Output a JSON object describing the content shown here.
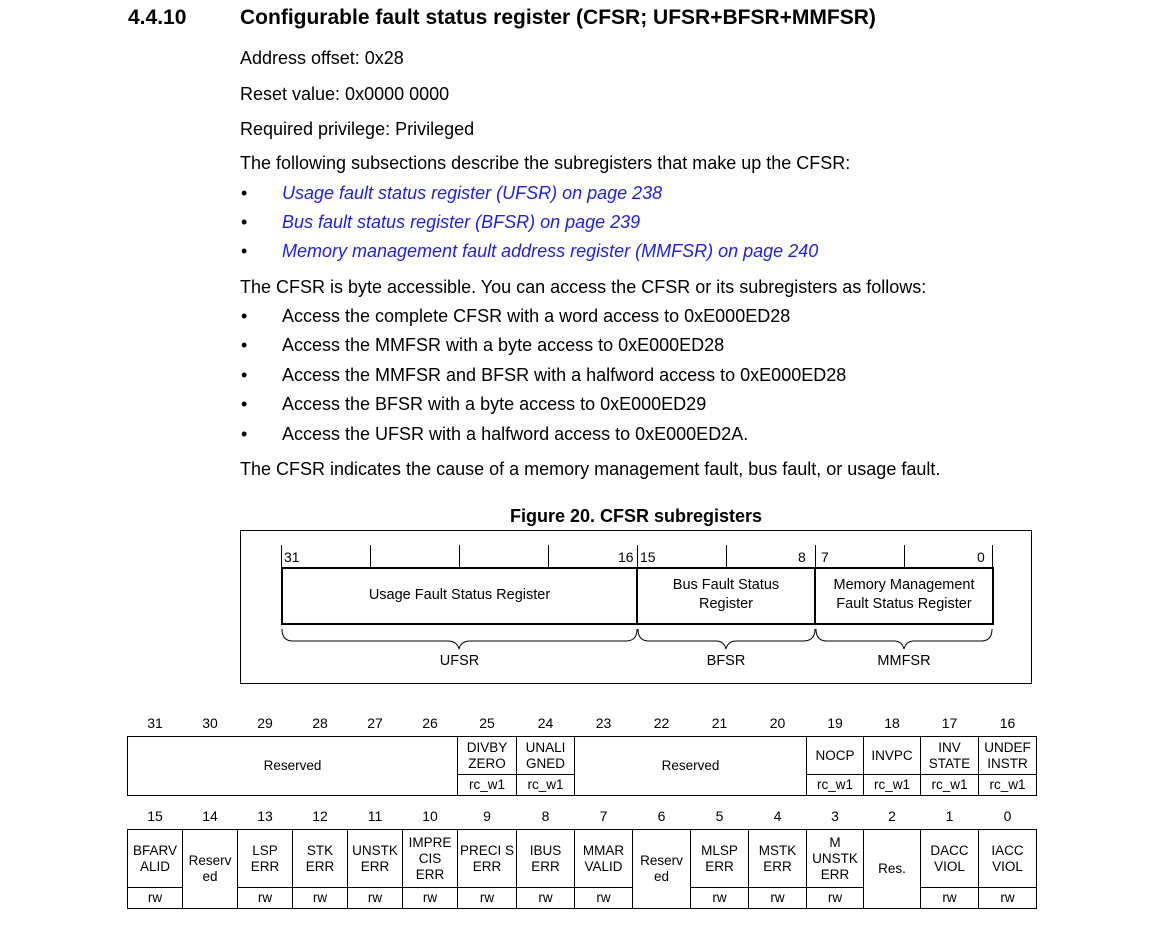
{
  "section": {
    "number": "4.4.10",
    "title": "Configurable fault status register (CFSR; UFSR+BFSR+MMFSR)"
  },
  "info": {
    "address": "Address offset: 0x28",
    "reset": "Reset value: 0x0000 0000",
    "privilege": "Required privilege: Privileged",
    "intro": "The following subsections describe the subregisters that make up the CFSR:"
  },
  "links": [
    "Usage fault status register (UFSR) on page 238",
    "Bus fault status register (BFSR) on page 239",
    "Memory management fault address register (MMFSR) on page 240"
  ],
  "access_intro": "The CFSR is byte accessible. You can access the CFSR or its subregisters as follows:",
  "access_items": [
    "Access the complete CFSR with a word access to 0xE000ED28",
    "Access the MMFSR with a byte access to 0xE000ED28",
    "Access the MMFSR and BFSR with a halfword access to 0xE000ED28",
    "Access the BFSR with a byte access to 0xE000ED29",
    "Access the UFSR with a halfword access to 0xE000ED2A."
  ],
  "bullet_char": "•",
  "conclusion": "The CFSR indicates the cause of a memory management fault, bus fault, or usage fault.",
  "figure": {
    "title": "Figure 20. CFSR subregisters",
    "bits": {
      "b31": "31",
      "b16": "16",
      "b15": "15",
      "b8": "8",
      "b7": "7",
      "b0": "0"
    },
    "ufsr_box": "Usage Fault Status Register",
    "bfsr_box_1": "Bus Fault Status",
    "bfsr_box_2": "Register",
    "mmfsr_box_1": "Memory Management",
    "mmfsr_box_2": "Fault Status Register",
    "ufsr": "UFSR",
    "bfsr": "BFSR",
    "mmfsr": "MMFSR"
  },
  "reg_high": {
    "bits": [
      "31",
      "30",
      "29",
      "28",
      "27",
      "26",
      "25",
      "24",
      "23",
      "22",
      "21",
      "20",
      "19",
      "18",
      "17",
      "16"
    ],
    "fields": [
      {
        "name": "Reserved",
        "access": ""
      },
      {
        "name": "DIVBY ZERO",
        "access": "rc_w1"
      },
      {
        "name": "UNALI GNED",
        "access": "rc_w1"
      },
      {
        "name": "Reserved",
        "access": ""
      },
      {
        "name": "NOCP",
        "access": "rc_w1"
      },
      {
        "name": "INVPC",
        "access": "rc_w1"
      },
      {
        "name": "INV STATE",
        "access": "rc_w1"
      },
      {
        "name": "UNDEF INSTR",
        "access": "rc_w1"
      }
    ]
  },
  "reg_low": {
    "bits": [
      "15",
      "14",
      "13",
      "12",
      "11",
      "10",
      "9",
      "8",
      "7",
      "6",
      "5",
      "4",
      "3",
      "2",
      "1",
      "0"
    ],
    "fields": [
      {
        "name": "BFARV ALID",
        "access": "rw"
      },
      {
        "name": "Reserv ed",
        "access": ""
      },
      {
        "name": "LSP ERR",
        "access": "rw"
      },
      {
        "name": "STK ERR",
        "access": "rw"
      },
      {
        "name": "UNSTK ERR",
        "access": "rw"
      },
      {
        "name": "IMPRE CIS ERR",
        "access": "rw"
      },
      {
        "name": "PRECI S ERR",
        "access": "rw"
      },
      {
        "name": "IBUS ERR",
        "access": "rw"
      },
      {
        "name": "MMAR VALID",
        "access": "rw"
      },
      {
        "name": "Reserv ed",
        "access": ""
      },
      {
        "name": "MLSP ERR",
        "access": "rw"
      },
      {
        "name": "MSTK ERR",
        "access": "rw"
      },
      {
        "name": "M UNSTK ERR",
        "access": "rw"
      },
      {
        "name": "Res.",
        "access": ""
      },
      {
        "name": "DACC VIOL",
        "access": "rw"
      },
      {
        "name": "IACC VIOL",
        "access": "rw"
      }
    ]
  }
}
